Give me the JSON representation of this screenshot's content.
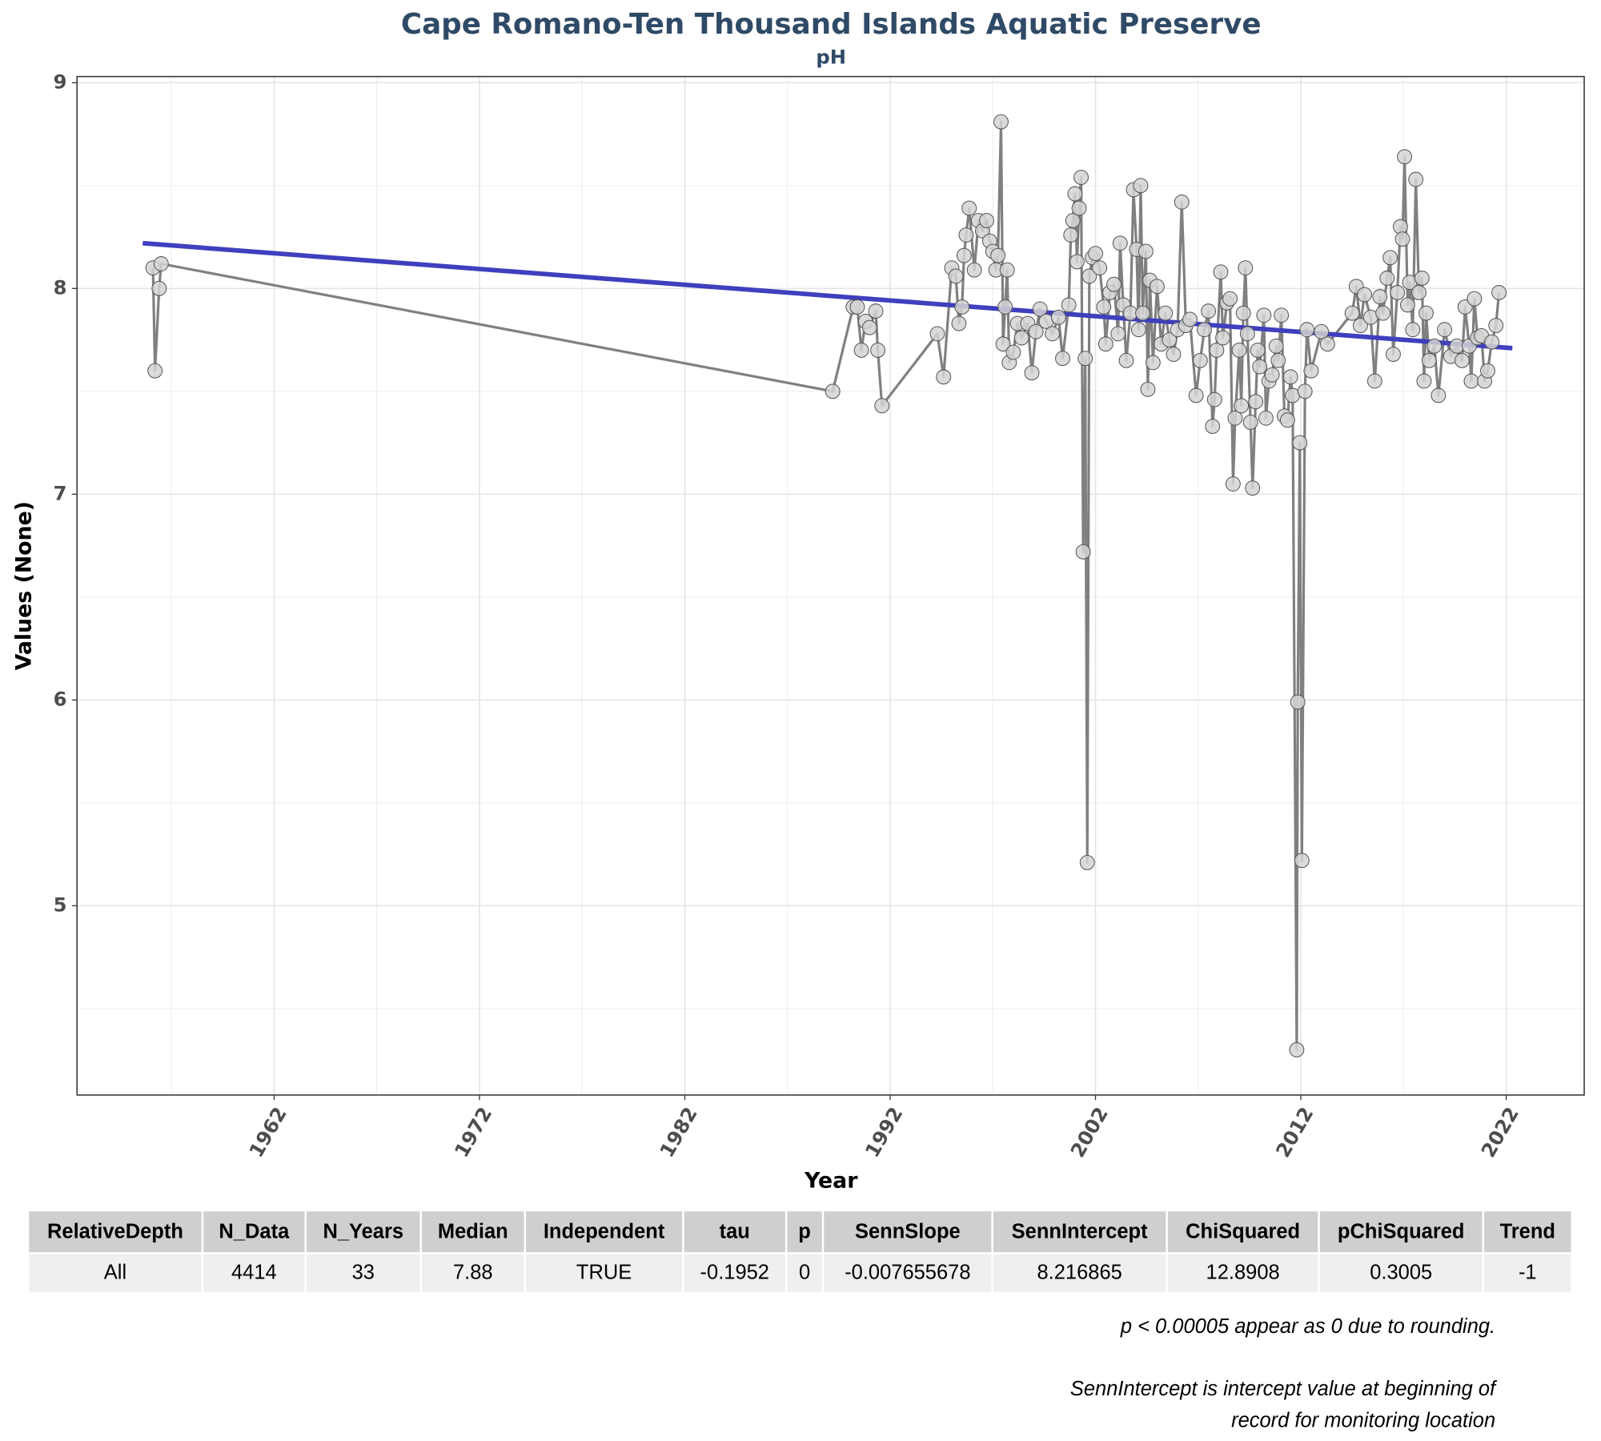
{
  "chart_data": {
    "type": "line",
    "title": "Cape Romano-Ten Thousand Islands Aquatic Preserve",
    "subtitle": "pH",
    "x_label": "Year",
    "y_label": "Values (None)",
    "xlim": [
      1952.4,
      2025.8
    ],
    "ylim": [
      4.08,
      9.03
    ],
    "xticks": [
      1962,
      1972,
      1982,
      1992,
      2002,
      2012,
      2022
    ],
    "yticks": [
      5,
      6,
      7,
      8,
      9
    ],
    "grid": true,
    "x": [
      1956.1,
      1956.2,
      1956.4,
      1956.5,
      1989.2,
      1990.2,
      1990.4,
      1990.6,
      1990.8,
      1991.0,
      1991.3,
      1991.4,
      1991.6,
      1994.3,
      1994.6,
      1995.0,
      1995.2,
      1995.35,
      1995.5,
      1995.6,
      1995.7,
      1995.85,
      1996.1,
      1996.3,
      1996.5,
      1996.7,
      1996.85,
      1997.0,
      1997.15,
      1997.25,
      1997.4,
      1997.5,
      1997.6,
      1997.7,
      1997.8,
      1998.0,
      1998.2,
      1998.4,
      1998.7,
      1998.9,
      1999.1,
      1999.3,
      1999.6,
      1999.9,
      2000.2,
      2000.4,
      2000.7,
      2000.8,
      2000.9,
      2001.0,
      2001.1,
      2001.2,
      2001.3,
      2001.4,
      2001.5,
      2001.6,
      2001.7,
      2001.85,
      2002.0,
      2002.2,
      2002.4,
      2002.5,
      2002.7,
      2002.9,
      2003.1,
      2003.2,
      2003.35,
      2003.5,
      2003.7,
      2003.85,
      2004.0,
      2004.1,
      2004.2,
      2004.3,
      2004.45,
      2004.55,
      2004.65,
      2004.8,
      2005.0,
      2005.2,
      2005.4,
      2005.6,
      2005.8,
      2006.0,
      2006.2,
      2006.4,
      2006.6,
      2006.9,
      2007.1,
      2007.3,
      2007.5,
      2007.7,
      2007.8,
      2007.9,
      2008.1,
      2008.2,
      2008.4,
      2008.55,
      2008.7,
      2008.8,
      2009.0,
      2009.1,
      2009.2,
      2009.3,
      2009.4,
      2009.55,
      2009.65,
      2009.8,
      2009.9,
      2010.0,
      2010.2,
      2010.3,
      2010.45,
      2010.6,
      2010.8,
      2010.9,
      2011.05,
      2011.2,
      2011.35,
      2011.5,
      2011.6,
      2011.8,
      2011.85,
      2011.95,
      2012.05,
      2012.2,
      2012.3,
      2012.5,
      2013.0,
      2013.3,
      2014.5,
      2014.7,
      2014.9,
      2015.1,
      2015.4,
      2015.6,
      2015.85,
      2016.0,
      2016.2,
      2016.35,
      2016.5,
      2016.7,
      2016.85,
      2016.95,
      2017.05,
      2017.2,
      2017.3,
      2017.45,
      2017.6,
      2017.75,
      2017.9,
      2018.0,
      2018.1,
      2018.25,
      2018.5,
      2018.7,
      2019.0,
      2019.3,
      2019.6,
      2019.85,
      2020.0,
      2020.2,
      2020.3,
      2020.45,
      2020.6,
      2020.8,
      2020.95,
      2021.1,
      2021.3,
      2021.5,
      2021.65
    ],
    "series": [
      {
        "color": "#808080",
        "marker_color": "#d3d3d3",
        "values": [
          8.1,
          7.6,
          8.0,
          8.12,
          7.5,
          7.91,
          7.91,
          7.7,
          7.84,
          7.81,
          7.89,
          7.7,
          7.43,
          7.78,
          7.57,
          8.1,
          8.06,
          7.83,
          7.91,
          8.16,
          8.26,
          8.39,
          8.09,
          8.33,
          8.28,
          8.33,
          8.23,
          8.18,
          8.09,
          8.16,
          8.81,
          7.73,
          7.91,
          8.09,
          7.64,
          7.69,
          7.83,
          7.76,
          7.83,
          7.59,
          7.79,
          7.9,
          7.84,
          7.78,
          7.86,
          7.66,
          7.92,
          8.26,
          8.33,
          8.46,
          8.13,
          8.39,
          8.54,
          6.72,
          7.66,
          5.21,
          8.06,
          8.15,
          8.17,
          8.1,
          7.91,
          7.73,
          7.98,
          8.02,
          7.78,
          8.22,
          7.92,
          7.65,
          7.88,
          8.48,
          8.19,
          7.8,
          8.5,
          7.88,
          8.18,
          7.51,
          8.04,
          7.64,
          8.01,
          7.73,
          7.88,
          7.75,
          7.68,
          7.8,
          8.42,
          7.82,
          7.85,
          7.48,
          7.65,
          7.8,
          7.89,
          7.33,
          7.46,
          7.7,
          8.08,
          7.76,
          7.93,
          7.95,
          7.05,
          7.37,
          7.7,
          7.43,
          7.88,
          8.1,
          7.78,
          7.35,
          7.03,
          7.45,
          7.7,
          7.62,
          7.87,
          7.37,
          7.55,
          7.58,
          7.72,
          7.65,
          7.87,
          7.38,
          7.36,
          7.57,
          7.48,
          4.3,
          5.99,
          7.25,
          5.22,
          7.5,
          7.8,
          7.6,
          7.79,
          7.73,
          7.88,
          8.01,
          7.82,
          7.97,
          7.86,
          7.55,
          7.96,
          7.88,
          8.05,
          8.15,
          7.68,
          7.98,
          8.3,
          8.24,
          8.64,
          7.92,
          8.03,
          7.8,
          8.53,
          7.98,
          8.05,
          7.55,
          7.88,
          7.65,
          7.72,
          7.48,
          7.8,
          7.67,
          7.72,
          7.65,
          7.91,
          7.72,
          7.55,
          7.95,
          7.76,
          7.77,
          7.55,
          7.6,
          7.74,
          7.82,
          7.98
        ]
      },
      {
        "color": "#3f3fbf",
        "x": [
          1955.6,
          2022.3
        ],
        "values": [
          8.22,
          7.71
        ]
      }
    ]
  },
  "table": {
    "columns": [
      "RelativeDepth",
      "N_Data",
      "N_Years",
      "Median",
      "Independent",
      "tau",
      "p",
      "SennSlope",
      "SennIntercept",
      "ChiSquared",
      "pChiSquared",
      "Trend"
    ],
    "rows": [
      [
        "All",
        4414,
        33,
        7.88,
        "TRUE",
        -0.1952,
        0,
        -0.007655678,
        8.216865,
        12.8908,
        0.3005,
        -1
      ]
    ]
  },
  "notes": [
    "p < 0.00005 appear as 0 due to rounding.",
    "SennIntercept is intercept value at beginning of",
    "record for monitoring location"
  ]
}
